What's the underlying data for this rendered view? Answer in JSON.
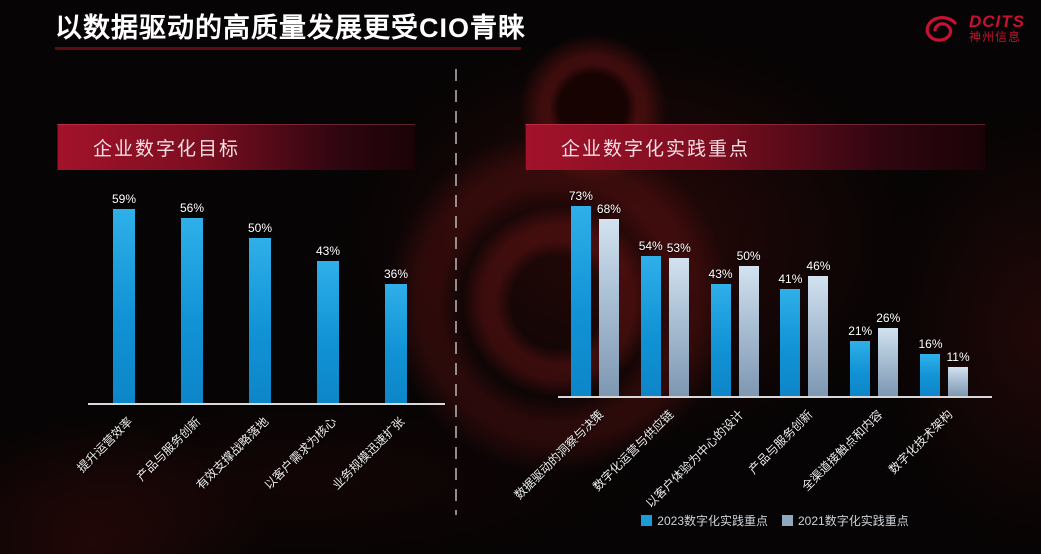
{
  "header": {
    "title": "以数据驱动的高质量发展更受CIO青睐",
    "logo": {
      "name": "DCITS",
      "subtitle": "神州信息",
      "color": "#c41230"
    }
  },
  "chart_data": [
    {
      "type": "bar",
      "title": "企业数字化目标",
      "categories": [
        "提升运营效率",
        "产品与服务创新",
        "有效支撑战略落地",
        "以客户需求为核心",
        "业务规模迅速扩张"
      ],
      "values": [
        59,
        56,
        50,
        43,
        36
      ],
      "value_labels": [
        "59%",
        "56%",
        "50%",
        "43%",
        "36%"
      ],
      "ylim": [
        0,
        80
      ],
      "grid": false,
      "legend": "none",
      "bar_color": "#1b9cd8"
    },
    {
      "type": "bar",
      "title": "企业数字化实践重点",
      "categories": [
        "数据驱动的洞察与决策",
        "数字化运营与供应链",
        "以客户体验为中心的设计",
        "产品与服务创新",
        "全渠道接触点和内容",
        "数字化技术架构"
      ],
      "series": [
        {
          "name": "2023数字化实践重点",
          "color": "#1b9cd8",
          "values": [
            73,
            54,
            43,
            41,
            21,
            16
          ],
          "value_labels": [
            "73%",
            "54%",
            "43%",
            "41%",
            "21%",
            "16%"
          ]
        },
        {
          "name": "2021数字化实践重点",
          "color": "#8fa8be",
          "values": [
            68,
            53,
            50,
            46,
            26,
            11
          ],
          "value_labels": [
            "68%",
            "53%",
            "50%",
            "46%",
            "26%",
            "11%"
          ]
        }
      ],
      "ylim": [
        0,
        80
      ],
      "grid": false,
      "legend_position": "bottom"
    }
  ],
  "colors": {
    "background": "#060404",
    "accent_red": "#9d1126",
    "bar_2023": "#1b9cd8",
    "bar_2021": "#8fa8be",
    "axis_line": "#d8d8d8",
    "text": "#ffffff"
  }
}
